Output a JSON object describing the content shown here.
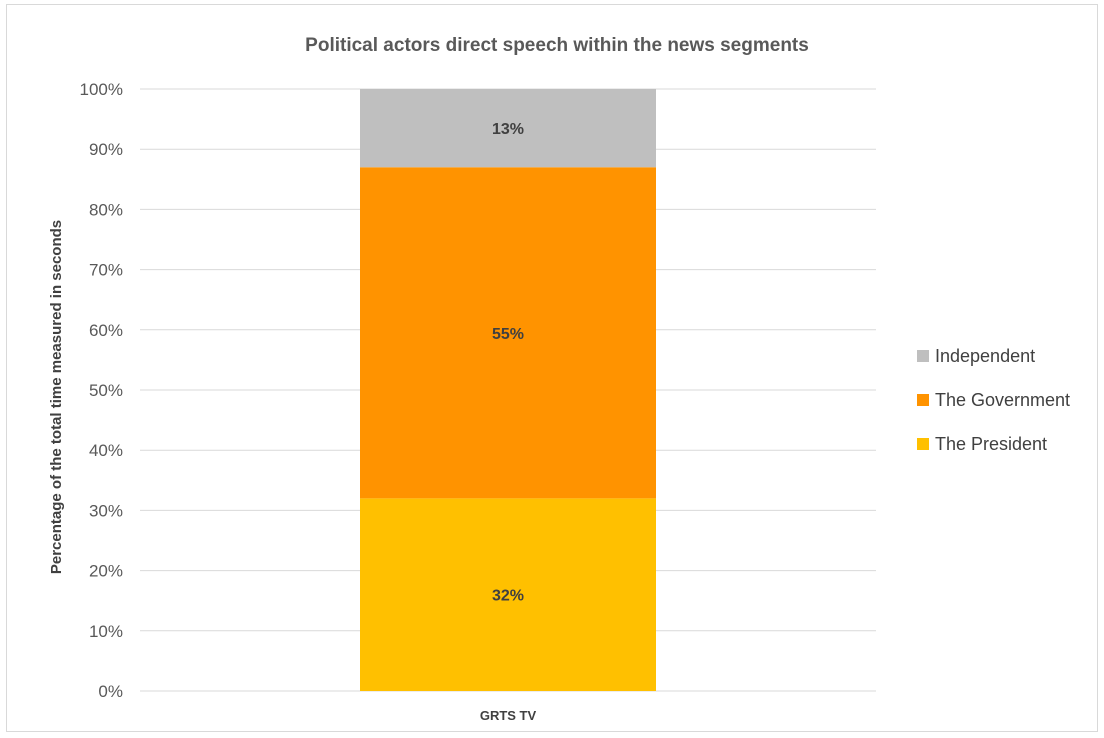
{
  "chart_data": {
    "type": "bar",
    "stacked": true,
    "title": "Political actors direct speech within the news segments",
    "xlabel": "",
    "ylabel": "Percentage of the total time measured in seconds",
    "categories": [
      "GRTS TV"
    ],
    "series": [
      {
        "name": "The President",
        "values": [
          32
        ],
        "label": "32%",
        "color": "#FFC000"
      },
      {
        "name": "The Government",
        "values": [
          55
        ],
        "label": "55%",
        "color": "#FF9300"
      },
      {
        "name": "Independent",
        "values": [
          13
        ],
        "label": "13%",
        "color": "#BFBFBF"
      }
    ],
    "ylim": [
      0,
      100
    ],
    "yticks": [
      "0%",
      "10%",
      "20%",
      "30%",
      "40%",
      "50%",
      "60%",
      "70%",
      "80%",
      "90%",
      "100%"
    ],
    "grid": true,
    "legend_position": "right",
    "legend_order": [
      "Independent",
      "The Government",
      "The President"
    ]
  }
}
